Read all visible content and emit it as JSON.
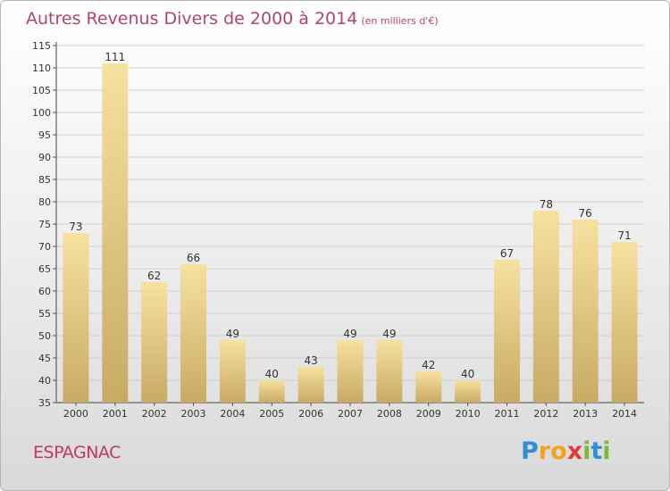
{
  "chart_data": {
    "type": "bar",
    "title": "Autres Revenus Divers de 2000 à 2014",
    "subtitle": "(en milliers d'€)",
    "categories": [
      "2000",
      "2001",
      "2002",
      "2003",
      "2004",
      "2005",
      "2006",
      "2007",
      "2008",
      "2009",
      "2010",
      "2011",
      "2012",
      "2013",
      "2014"
    ],
    "values": [
      73,
      111,
      62,
      66,
      49,
      40,
      43,
      49,
      49,
      42,
      40,
      67,
      78,
      76,
      71
    ],
    "ylim": [
      35,
      115
    ],
    "yticks": [
      35,
      40,
      45,
      50,
      55,
      60,
      65,
      70,
      75,
      80,
      85,
      90,
      95,
      100,
      105,
      110,
      115
    ],
    "grid": true,
    "legend": "none",
    "colors": {
      "bar_top": "#f7e19f",
      "bar_bottom": "#c8aa64",
      "title": "#b2456e",
      "grid": "#cfcfcf",
      "axis_text": "#333333"
    }
  },
  "footer": {
    "location": "ESPAGNAC",
    "logo_letters": [
      "P",
      "r",
      "o",
      "x",
      "i",
      "t",
      "i"
    ],
    "logo_colors": [
      "#2f8fd1",
      "#f1a321",
      "#f1a321",
      "#e23b3b",
      "#7db93b",
      "#2f8fd1",
      "#7db93b"
    ]
  }
}
